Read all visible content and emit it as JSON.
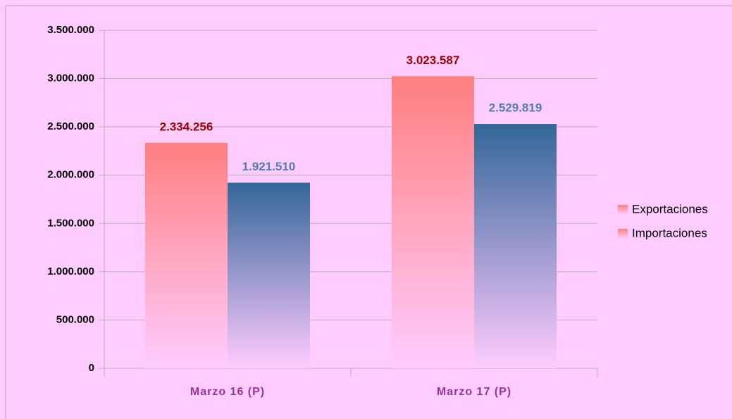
{
  "chart_data": {
    "type": "bar",
    "categories": [
      "Marzo 16 (P)",
      "Marzo 17 (P)"
    ],
    "series": [
      {
        "name": "Exportaciones",
        "color": "#ff7f7f",
        "values": [
          2334256,
          3023587
        ],
        "value_labels": [
          "2.334.256",
          "3.023.587"
        ]
      },
      {
        "name": "Importaciones",
        "color": "#336699",
        "values": [
          1921510,
          2529819
        ],
        "value_labels": [
          "1.921.510",
          "2.529.819"
        ]
      }
    ],
    "ylim": [
      0,
      3500000
    ],
    "yticks": [
      0,
      {
        "value": 500000,
        "label": "500.000"
      },
      {
        "value": 1000000,
        "label": "1.000.000"
      },
      {
        "value": 1500000,
        "label": "1.500.000"
      },
      {
        "value": 2000000,
        "label": "2.000.000"
      },
      {
        "value": 2500000,
        "label": "2.500.000"
      },
      {
        "value": 3000000,
        "label": "3.000.000"
      },
      {
        "value": 3500000,
        "label": "3.500.000"
      }
    ],
    "grid": true,
    "legend": "right"
  }
}
